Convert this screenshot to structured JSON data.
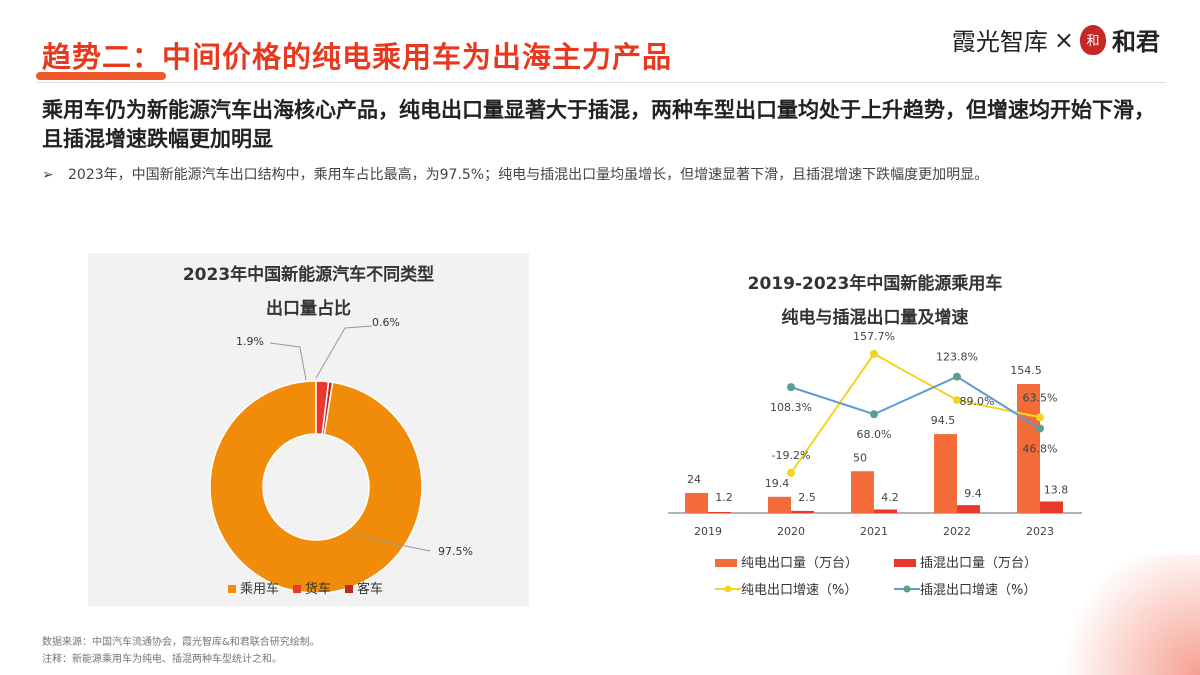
{
  "title": "趋势二：中间价格的纯电乘用车为出海主力产品",
  "brand": {
    "left": "霞光智库",
    "x": "×",
    "seal": "和",
    "right": "和君"
  },
  "heading": "乘用车仍为新能源汽车出海核心产品，纯电出口量显著大于插混，两种车型出口量均处于上升趋势，但增速均开始下滑，且插混增速跌幅更加明显",
  "bullet": {
    "marker": "➢",
    "text": "2023年，中国新能源汽车出口结构中，乘用车占比最高，为97.5%；纯电与插混出口量均虽增长，但增速显著下滑，且插混增速下跌幅度更加明显。"
  },
  "footnotes": {
    "source": "数据来源：中国汽车流通协会，霞光智库&和君联合研究绘制。",
    "note": "注释：新能源乘用车为纯电、插混两种车型统计之和。"
  },
  "chart_data": [
    {
      "type": "pie",
      "title_line1": "2023年中国新能源汽车不同类型",
      "title_line2": "出口量占比",
      "donut": true,
      "slices": [
        {
          "name": "乘用车",
          "value": 97.5,
          "label": "97.5%",
          "color": "#f08c0a"
        },
        {
          "name": "货车",
          "value": 1.9,
          "label": "1.9%",
          "color": "#e8392c"
        },
        {
          "name": "客车",
          "value": 0.6,
          "label": "0.6%",
          "color": "#c0281e"
        }
      ],
      "legend": "bottom"
    },
    {
      "type": "bar+line",
      "title_line1": "2019-2023年中国新能源乘用车",
      "title_line2": "纯电与插混出口量及增速",
      "categories": [
        "2019",
        "2020",
        "2021",
        "2022",
        "2023"
      ],
      "series": [
        {
          "name": "纯电出口量（万台）",
          "type": "bar",
          "color": "#f26b38",
          "values": [
            24,
            19.4,
            50,
            94.5,
            154.5
          ],
          "labels": [
            "24",
            "19.4",
            "50",
            "94.5",
            "154.5"
          ]
        },
        {
          "name": "插混出口量（万台）",
          "type": "bar",
          "color": "#e8392c",
          "values": [
            1.2,
            2.5,
            4.2,
            9.4,
            13.8
          ],
          "labels": [
            "1.2",
            "2.5",
            "4.2",
            "9.4",
            "13.8"
          ]
        },
        {
          "name": "纯电出口增速（%）",
          "type": "line",
          "color": "#f2d61e",
          "values": [
            null,
            -19.2,
            157.7,
            89.0,
            63.5
          ],
          "labels": [
            "",
            "-19.2%",
            "157.7%",
            "89.0%",
            "63.5%"
          ]
        },
        {
          "name": "插混出口增速（%）",
          "type": "line",
          "color": "#5b9bd5",
          "marker_color": "#5a9e8c",
          "values": [
            null,
            108.3,
            68.0,
            123.8,
            46.8
          ],
          "labels": [
            "",
            "108.3%",
            "68.0%",
            "123.8%",
            "46.8%"
          ]
        }
      ],
      "legend": "bottom",
      "grid": false
    }
  ]
}
